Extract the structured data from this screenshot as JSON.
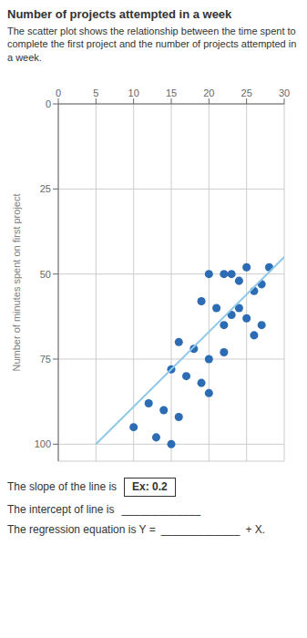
{
  "chart_data": {
    "type": "scatter",
    "title": "Number of projects attempted in a week",
    "ylabel": "Number of minutes spent on first project",
    "xlim": [
      0,
      30
    ],
    "ylim": [
      0,
      105
    ],
    "xticks": [
      0,
      5,
      10,
      15,
      20,
      25,
      30
    ],
    "yticks": [
      0,
      25,
      50,
      75,
      100
    ],
    "grid": true,
    "series": [
      {
        "type": "scatter",
        "color": "#2b6cb5",
        "x": [
          20,
          22,
          23,
          24,
          25,
          26,
          27,
          28,
          19,
          21,
          23,
          24,
          22,
          25,
          26,
          27,
          16,
          18,
          20,
          22,
          15,
          17,
          19,
          20,
          12,
          14,
          16,
          10,
          13,
          15
        ],
        "values": [
          50,
          50,
          50,
          52,
          48,
          55,
          53,
          48,
          58,
          60,
          62,
          60,
          65,
          63,
          68,
          65,
          70,
          72,
          75,
          73,
          78,
          80,
          82,
          85,
          88,
          90,
          92,
          95,
          98,
          100
        ]
      },
      {
        "type": "line",
        "color": "#8fc8e8",
        "x": [
          5,
          30
        ],
        "values": [
          100,
          45
        ]
      }
    ],
    "annotations": [
      "The scatter plot shows the relationship between the time spent to complete the first project and the number of projects attempted in a week.",
      "The slope of the line is",
      "Ex: 0.2",
      "The intercept of line is",
      "_____________",
      "The regression equation is Y =",
      "_____________",
      "+ X."
    ]
  }
}
